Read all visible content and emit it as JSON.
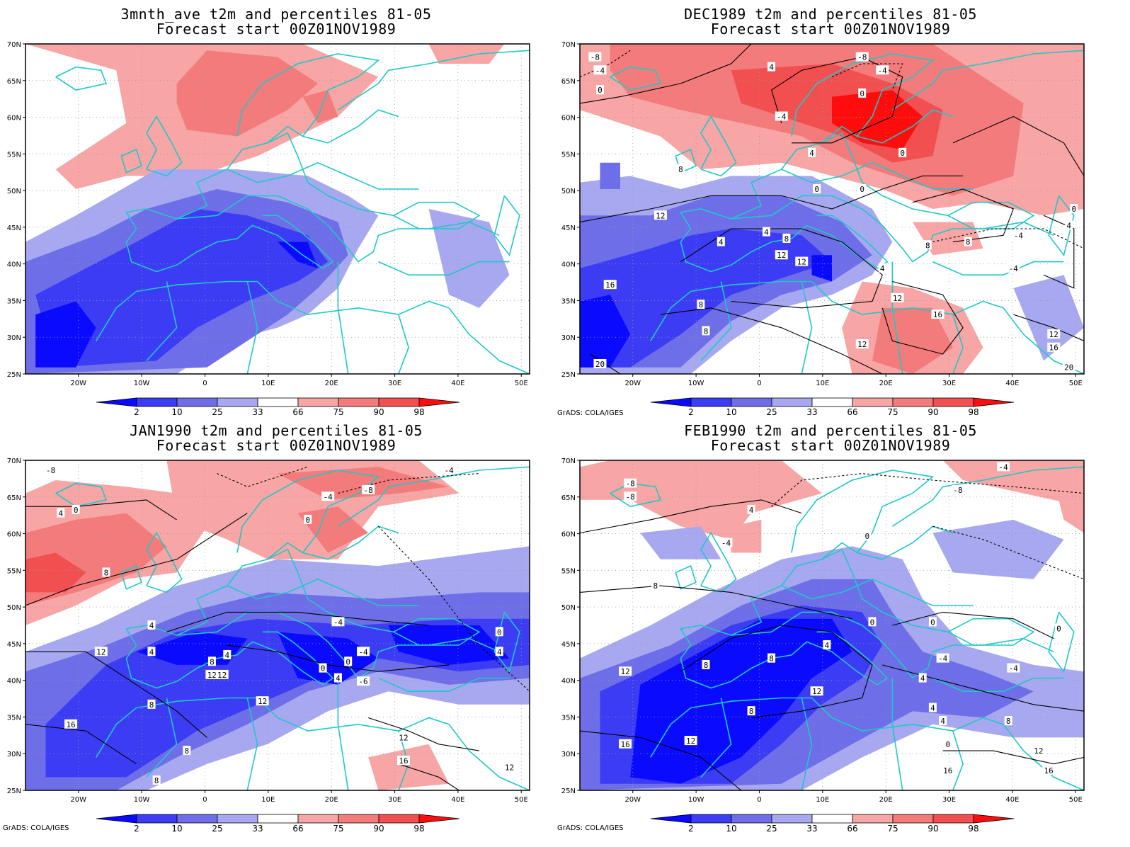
{
  "legend": {
    "labels": [
      "2",
      "10",
      "25",
      "33",
      "66",
      "75",
      "90",
      "98"
    ],
    "colors": [
      "#0a0aff",
      "#3c3cf5",
      "#6e6ee8",
      "#a8a8f0",
      "#ffffff",
      "#f7a5a5",
      "#f47b7b",
      "#f25050",
      "#ff0d0d"
    ]
  },
  "axes": {
    "lon_labels": [
      "20W",
      "10W",
      "0",
      "10E",
      "20E",
      "30E",
      "40E",
      "50E"
    ],
    "lat_labels": [
      "25N",
      "30N",
      "35N",
      "40N",
      "45N",
      "50N",
      "55N",
      "60N",
      "65N",
      "70N"
    ]
  },
  "credit": "GrADS: COLA/IGES",
  "panels": [
    {
      "title_line1": "3mnth_ave t2m and percentiles 81-05",
      "title_line2": "Forecast start 00Z01NOV1989",
      "contour_labels": [],
      "show_credit": false
    },
    {
      "title_line1": "DEC1989 t2m and percentiles 81-05",
      "title_line2": "Forecast start 00Z01NOV1989",
      "contour_labels": [
        "-8",
        "-8",
        "-4",
        "-4",
        "-4",
        "0",
        "4",
        "0",
        "4",
        "8",
        "0",
        "0",
        "12",
        "4",
        "8",
        "4",
        "12",
        "12",
        "4",
        "16",
        "8",
        "12",
        "8",
        "16",
        "12",
        "0",
        "4",
        "8",
        "12",
        "16",
        "20",
        "20",
        "-4",
        "-4",
        "0",
        "8"
      ],
      "show_credit": true
    },
    {
      "title_line1": "JAN1990 t2m and percentiles 81-05",
      "title_line2": "Forecast start 00Z01NOV1989",
      "contour_labels": [
        "-8",
        "-8",
        "0",
        "4",
        "-4",
        "0",
        "8",
        "4",
        "12",
        "-4",
        "4",
        "8",
        "12",
        "4",
        "0",
        "4",
        "-4",
        "0",
        "-6",
        "12",
        "8",
        "16",
        "8",
        "12",
        "12",
        "8",
        "16",
        "0",
        "4",
        "12",
        "-4"
      ],
      "show_credit": true
    },
    {
      "title_line1": "FEB1990 t2m and percentiles 81-05",
      "title_line2": "Forecast start 00Z01NOV1989",
      "contour_labels": [
        "-8",
        "-8",
        "-8",
        "-4",
        "-4",
        "0",
        "4",
        "8",
        "0",
        "4",
        "8",
        "12",
        "0",
        "-4",
        "0",
        "4",
        "-4",
        "4",
        "8",
        "12",
        "16",
        "8",
        "12",
        "16",
        "12",
        "8",
        "0",
        "4",
        "16"
      ],
      "show_credit": true
    }
  ]
}
